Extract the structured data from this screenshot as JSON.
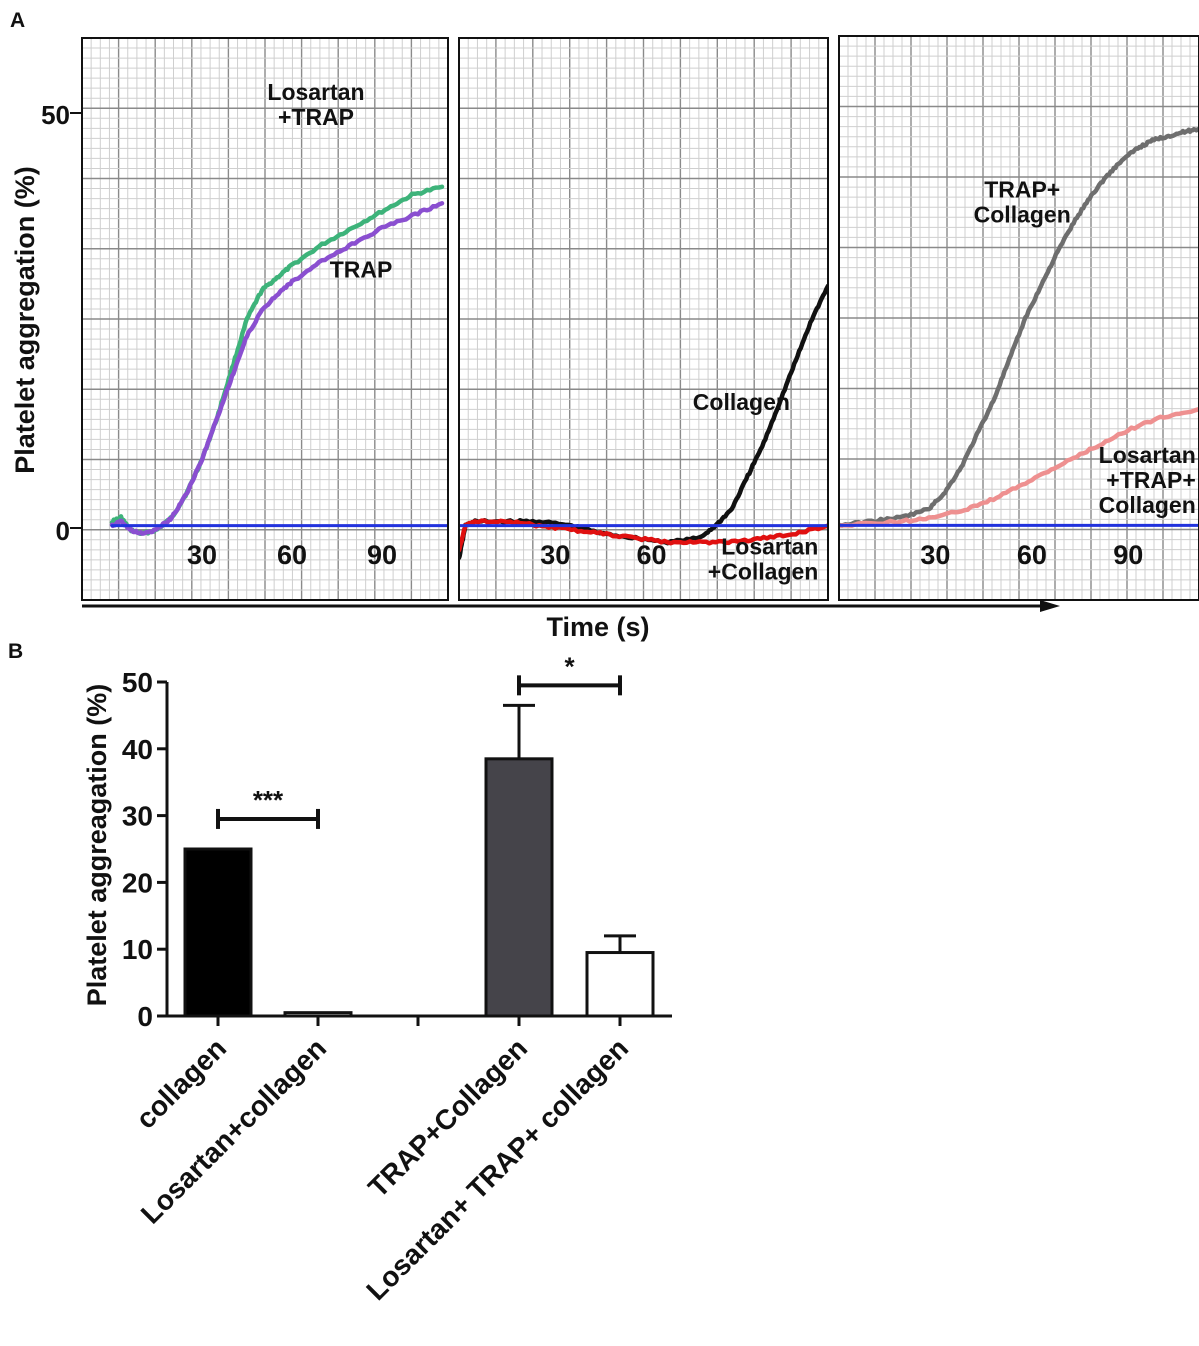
{
  "panel_a": {
    "letter": "A",
    "ylabel": "Platelet aggregation (%)",
    "xlabel": "Time (s)",
    "y_ticks": [
      "50",
      "0"
    ],
    "x_ticks": [
      "30",
      "60",
      "90"
    ]
  },
  "panel_b": {
    "letter": "B",
    "ylabel": "Platelet aggreagation (%)"
  },
  "chart_data": [
    {
      "type": "line",
      "panel": "A1",
      "xlabel": "Time (s)",
      "ylabel": "Platelet aggregation (%)",
      "xlim": [
        -10,
        112
      ],
      "ylim": [
        -9,
        59
      ],
      "x_ticks": [
        30,
        60,
        90
      ],
      "y_ticks": [
        0,
        50
      ],
      "grid": true,
      "series": [
        {
          "name": "Losartan +TRAP",
          "color": "#3db37a",
          "x": [
            0,
            3,
            6,
            10,
            15,
            20,
            25,
            30,
            35,
            40,
            45,
            50,
            55,
            60,
            70,
            80,
            90,
            100,
            110
          ],
          "y": [
            0.5,
            1,
            -0.5,
            -1,
            -0.5,
            1,
            4,
            8,
            13,
            19,
            25,
            28.5,
            30,
            31.5,
            34,
            36,
            38,
            40,
            41
          ]
        },
        {
          "name": "TRAP",
          "color": "#8a4fd0",
          "x": [
            0,
            3,
            6,
            10,
            15,
            20,
            25,
            30,
            35,
            40,
            45,
            50,
            55,
            60,
            70,
            80,
            90,
            100,
            110
          ],
          "y": [
            0,
            0.5,
            -0.5,
            -1,
            -0.5,
            1,
            4,
            8,
            13,
            18,
            23,
            26,
            28,
            29.5,
            32,
            34,
            36,
            37.5,
            39
          ]
        },
        {
          "name": "",
          "color": "#2233dd",
          "x": [
            0,
            112
          ],
          "y": [
            0,
            0
          ]
        }
      ]
    },
    {
      "type": "line",
      "panel": "A2",
      "xlim": [
        0,
        115
      ],
      "ylim": [
        -9,
        59
      ],
      "x_ticks": [
        30,
        60
      ],
      "grid": true,
      "series": [
        {
          "name": "Collagen",
          "color": "#111111",
          "x": [
            0,
            2,
            5,
            15,
            25,
            35,
            45,
            55,
            65,
            75,
            80,
            85,
            90,
            95,
            100,
            105,
            110,
            115
          ],
          "y": [
            -4,
            0,
            0.5,
            0.5,
            0.5,
            0,
            -1,
            -1.5,
            -2,
            -1.5,
            0,
            2,
            6,
            10,
            15,
            20,
            25,
            29
          ]
        },
        {
          "name": "Losartan +Collagen",
          "color": "#e01010",
          "x": [
            0,
            2,
            5,
            15,
            25,
            35,
            45,
            55,
            65,
            75,
            85,
            95,
            105,
            115
          ],
          "y": [
            -3,
            0,
            0.5,
            0.5,
            0,
            -0.5,
            -1,
            -1.5,
            -2,
            -2,
            -2,
            -1.5,
            -1,
            0
          ]
        },
        {
          "name": "",
          "color": "#2233dd",
          "x": [
            0,
            115
          ],
          "y": [
            0,
            0
          ]
        }
      ]
    },
    {
      "type": "line",
      "panel": "A3",
      "xlim": [
        0,
        112
      ],
      "ylim": [
        -9,
        59
      ],
      "x_ticks": [
        30,
        60,
        90
      ],
      "grid": true,
      "series": [
        {
          "name": "TRAP+ Collagen",
          "color": "#6e6e6e",
          "x": [
            0,
            10,
            20,
            28,
            33,
            38,
            43,
            48,
            53,
            58,
            63,
            68,
            73,
            78,
            83,
            88,
            93,
            98,
            103,
            108,
            112
          ],
          "y": [
            0,
            0.5,
            1,
            2,
            4,
            7,
            11,
            15,
            20,
            25,
            29,
            33,
            36.5,
            39.5,
            42,
            44,
            45.5,
            46.5,
            47,
            47.5,
            47.8
          ]
        },
        {
          "name": "Losartan +TRAP+ Collagen",
          "color": "#ee9090",
          "x": [
            0,
            20,
            30,
            40,
            50,
            60,
            70,
            80,
            90,
            100,
            112
          ],
          "y": [
            0,
            0.5,
            1,
            2,
            3.5,
            5.5,
            7.5,
            9.5,
            11.5,
            13,
            14
          ]
        },
        {
          "name": "",
          "color": "#2233dd",
          "x": [
            0,
            112
          ],
          "y": [
            0,
            0
          ]
        }
      ]
    },
    {
      "type": "bar",
      "panel": "B",
      "ylabel": "Platelet aggreagation (%)",
      "ylim": [
        0,
        50
      ],
      "y_ticks": [
        0,
        10,
        20,
        30,
        40,
        50
      ],
      "categories": [
        "collagen",
        "Losartan+collagen",
        "",
        "TRAP+Collagen",
        "Losartan+ TRAP+ collagen"
      ],
      "values": [
        25,
        0.5,
        0,
        38.5,
        9.5
      ],
      "errors": [
        0,
        0,
        0,
        8,
        2.5
      ],
      "colors": [
        "#000000",
        "#ffffff",
        "#ffffff",
        "#45444a",
        "#ffffff"
      ],
      "significance": [
        {
          "from": 0,
          "to": 1,
          "label": "***",
          "y": 29.5
        },
        {
          "from": 3,
          "to": 4,
          "label": "*",
          "y": 49.5
        }
      ]
    }
  ],
  "annotations": [
    {
      "panel": 0,
      "lines": [
        "Losartan",
        "+TRAP"
      ],
      "x": 68,
      "y": 51.5
    },
    {
      "panel": 0,
      "lines": [
        "TRAP"
      ],
      "x": 83,
      "y": 30
    },
    {
      "panel": 1,
      "lines": [
        "Collagen"
      ],
      "x": 88,
      "y": 14
    },
    {
      "panel": 1,
      "lines": [
        "Losartan",
        "+Collagen"
      ],
      "x": 112,
      "y": -3.5,
      "anchor": "end"
    },
    {
      "panel": 2,
      "lines": [
        "TRAP+",
        "Collagen"
      ],
      "x": 57,
      "y": 39.5
    },
    {
      "panel": 2,
      "lines": [
        "Losartan",
        "+TRAP+",
        "Collagen"
      ],
      "x": 111,
      "y": 7.5,
      "anchor": "end"
    }
  ]
}
